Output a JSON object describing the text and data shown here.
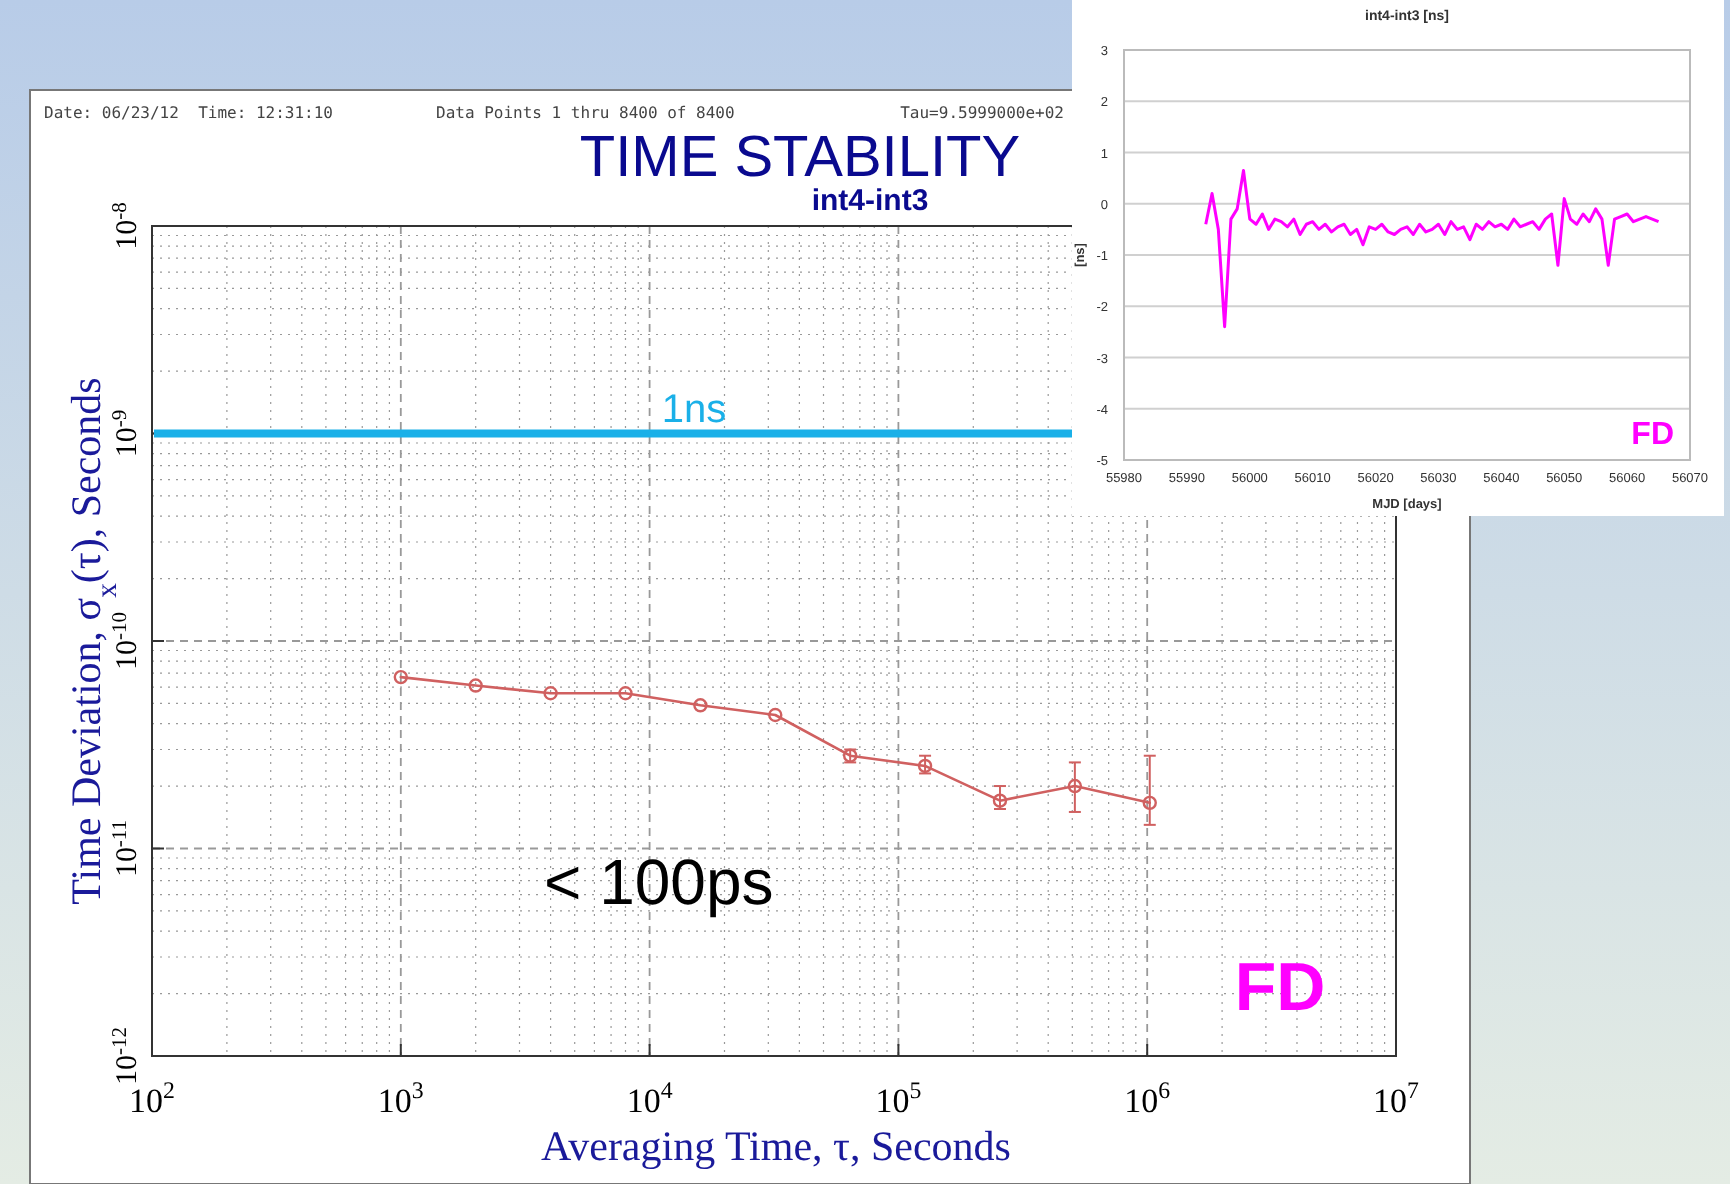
{
  "chart_data": [
    {
      "type": "line",
      "title": "TIME STABILITY",
      "subtitle": "int4-int3",
      "xlabel": "Averaging Time, τ, Seconds",
      "ylabel": "Time Deviation, σ$_{x}$(τ), Seconds",
      "log": "xy",
      "grid": true,
      "marker": "circle",
      "line_style": "solid",
      "annotations": [
        "Date: 06/23/12  Time: 12:31:10",
        "Data Points 1 thru 8400 of 8400",
        "Tau=9.5999000e+02",
        "< 100ps",
        "FD"
      ],
      "xlim": [
        100,
        10000000
      ],
      "ylim": [
        1e-12,
        1e-08
      ],
      "xticks": [
        {
          "value": 100,
          "label": "10$^{2}$"
        },
        {
          "value": 1000,
          "label": "10$^{3}$"
        },
        {
          "value": 10000,
          "label": "10$^{4}$"
        },
        {
          "value": 100000,
          "label": "10$^{5}$"
        },
        {
          "value": 1000000,
          "label": "10$^{6}$"
        },
        {
          "value": 10000000,
          "label": "10$^{7}$"
        }
      ],
      "yticks": [
        {
          "value": 1e-12,
          "label": "10$^{-12}$"
        },
        {
          "value": 1e-11,
          "label": "10$^{-11}$"
        },
        {
          "value": 1e-10,
          "label": "10$^{-10}$"
        },
        {
          "value": 1e-09,
          "label": "10$^{-9}$"
        },
        {
          "value": 1e-08,
          "label": "10$^{-8}$"
        }
      ],
      "ref_lines": [
        {
          "axis": "y",
          "value": 1e-09,
          "label": "1ns",
          "color": "#1ab0e8"
        }
      ],
      "x": [
        1000,
        2000,
        4000,
        8000,
        16000,
        32000,
        64000,
        128000,
        256000,
        512000,
        1024000
      ],
      "series": [
        {
          "color": "#d06060",
          "values": [
            6.7e-11,
            6.1e-11,
            5.6e-11,
            5.6e-11,
            4.9e-11,
            4.4e-11,
            2.8e-11,
            2.5e-11,
            1.7e-11,
            2e-11,
            1.66e-11
          ],
          "errors": [
            null,
            null,
            null,
            null,
            null,
            null,
            [
              2.6e-11,
              3e-11
            ],
            [
              2.3e-11,
              2.8e-11
            ],
            [
              1.55e-11,
              2e-11
            ],
            [
              1.5e-11,
              2.6e-11
            ],
            [
              1.3e-11,
              2.8e-11
            ]
          ]
        }
      ]
    },
    {
      "type": "line",
      "title": "int4-int3 [ns]",
      "xlabel": "MJD [days]",
      "ylabel": "[ns]",
      "grid": "y",
      "annotations": [
        "FD"
      ],
      "xlim": [
        55980,
        56070
      ],
      "ylim": [
        -5,
        3
      ],
      "xticks": [
        55980,
        55990,
        56000,
        56010,
        56020,
        56030,
        56040,
        56050,
        56060,
        56070
      ],
      "yticks": [
        -5,
        -4,
        -3,
        -2,
        -1,
        0,
        1,
        2,
        3
      ],
      "x": [
        55993,
        55994,
        55995,
        55996,
        55997,
        55998,
        55999,
        56000,
        56001,
        56002,
        56003,
        56004,
        56005,
        56006,
        56007,
        56008,
        56009,
        56010,
        56011,
        56012,
        56013,
        56014,
        56015,
        56016,
        56017,
        56018,
        56019,
        56020,
        56021,
        56022,
        56023,
        56024,
        56025,
        56026,
        56027,
        56028,
        56029,
        56030,
        56031,
        56032,
        56033,
        56034,
        56035,
        56036,
        56037,
        56038,
        56039,
        56040,
        56041,
        56042,
        56043,
        56044,
        56045,
        56046,
        56047,
        56048,
        56049,
        56050,
        56051,
        56052,
        56053,
        56054,
        56055,
        56056,
        56057,
        56058,
        56059,
        56060,
        56061,
        56062,
        56063,
        56064,
        56065
      ],
      "series": [
        {
          "color": "#ff00ff",
          "values": [
            -0.4,
            0.2,
            -0.5,
            -2.4,
            -0.3,
            -0.1,
            0.65,
            -0.3,
            -0.4,
            -0.2,
            -0.5,
            -0.3,
            -0.35,
            -0.45,
            -0.3,
            -0.6,
            -0.4,
            -0.35,
            -0.5,
            -0.4,
            -0.55,
            -0.45,
            -0.4,
            -0.6,
            -0.5,
            -0.8,
            -0.45,
            -0.5,
            -0.4,
            -0.55,
            -0.6,
            -0.5,
            -0.45,
            -0.6,
            -0.4,
            -0.55,
            -0.5,
            -0.4,
            -0.6,
            -0.35,
            -0.5,
            -0.45,
            -0.7,
            -0.4,
            -0.5,
            -0.35,
            -0.45,
            -0.4,
            -0.5,
            -0.3,
            -0.45,
            -0.4,
            -0.35,
            -0.5,
            -0.3,
            -0.2,
            -1.2,
            0.1,
            -0.3,
            -0.4,
            -0.2,
            -0.35,
            -0.1,
            -0.3,
            -1.2,
            -0.3,
            -0.25,
            -0.2,
            -0.35,
            -0.3,
            -0.25,
            -0.3,
            -0.35
          ]
        }
      ]
    }
  ]
}
